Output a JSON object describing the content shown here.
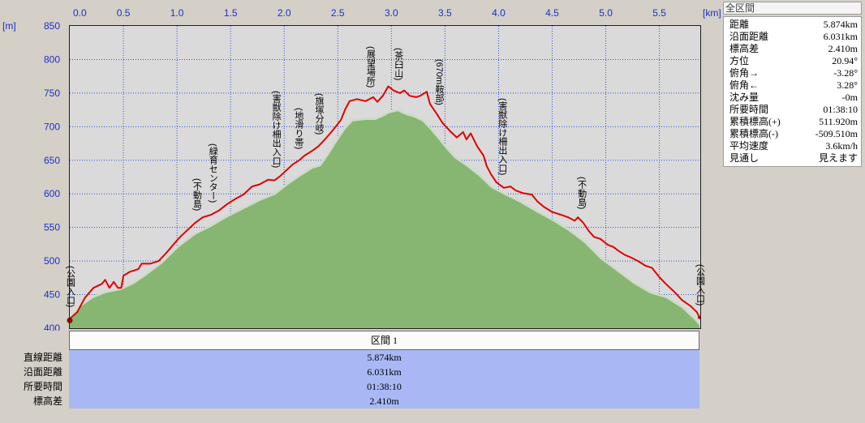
{
  "chart_data": {
    "type": "line",
    "xlabel": "[km]",
    "ylabel": "[m]",
    "xlim": [
      0,
      5.874
    ],
    "ylim": [
      400,
      850
    ],
    "grid": true,
    "x_ticks": [
      "0.0",
      "0.5",
      "1.0",
      "1.5",
      "2.0",
      "2.5",
      "3.0",
      "3.5",
      "4.0",
      "4.5",
      "5.0",
      "5.5"
    ],
    "y_ticks": [
      "850",
      "800",
      "750",
      "700",
      "650",
      "600",
      "550",
      "500",
      "450",
      "400"
    ],
    "series": [
      {
        "style": "area",
        "color": "#86b672",
        "edge_color": "#cddbc6",
        "points": [
          [
            0,
            410
          ],
          [
            0.11,
            433
          ],
          [
            0.22,
            445
          ],
          [
            0.33,
            452
          ],
          [
            0.48,
            457
          ],
          [
            0.6,
            466
          ],
          [
            0.71,
            478
          ],
          [
            0.86,
            496
          ],
          [
            1.02,
            521
          ],
          [
            1.17,
            539
          ],
          [
            1.32,
            551
          ],
          [
            1.47,
            565
          ],
          [
            1.62,
            577
          ],
          [
            1.77,
            589
          ],
          [
            1.92,
            599
          ],
          [
            2.04,
            614
          ],
          [
            2.15,
            626
          ],
          [
            2.27,
            638
          ],
          [
            2.34,
            641
          ],
          [
            2.42,
            659
          ],
          [
            2.49,
            677
          ],
          [
            2.57,
            696
          ],
          [
            2.64,
            708
          ],
          [
            2.76,
            710
          ],
          [
            2.85,
            710
          ],
          [
            2.91,
            714
          ],
          [
            2.98,
            720
          ],
          [
            3.06,
            723
          ],
          [
            3.14,
            717
          ],
          [
            3.21,
            714
          ],
          [
            3.29,
            708
          ],
          [
            3.36,
            696
          ],
          [
            3.44,
            681
          ],
          [
            3.52,
            665
          ],
          [
            3.59,
            653
          ],
          [
            3.7,
            641
          ],
          [
            3.82,
            626
          ],
          [
            3.93,
            609
          ],
          [
            4.05,
            599
          ],
          [
            4.2,
            587
          ],
          [
            4.35,
            573
          ],
          [
            4.5,
            560
          ],
          [
            4.65,
            545
          ],
          [
            4.8,
            527
          ],
          [
            4.95,
            503
          ],
          [
            5.11,
            484
          ],
          [
            5.26,
            466
          ],
          [
            5.41,
            452
          ],
          [
            5.56,
            445
          ],
          [
            5.71,
            430
          ],
          [
            5.83,
            412
          ],
          [
            5.874,
            404
          ]
        ]
      },
      {
        "style": "line",
        "color": "#e00000",
        "points": [
          [
            0,
            414
          ],
          [
            0.07,
            424
          ],
          [
            0.14,
            445
          ],
          [
            0.22,
            460
          ],
          [
            0.3,
            466
          ],
          [
            0.33,
            472
          ],
          [
            0.37,
            460
          ],
          [
            0.41,
            469
          ],
          [
            0.45,
            460
          ],
          [
            0.48,
            460
          ],
          [
            0.5,
            478
          ],
          [
            0.56,
            484
          ],
          [
            0.64,
            488
          ],
          [
            0.67,
            496
          ],
          [
            0.75,
            496
          ],
          [
            0.83,
            500
          ],
          [
            0.9,
            512
          ],
          [
            0.98,
            527
          ],
          [
            1.03,
            536
          ],
          [
            1.09,
            545
          ],
          [
            1.17,
            557
          ],
          [
            1.24,
            565
          ],
          [
            1.32,
            569
          ],
          [
            1.39,
            575
          ],
          [
            1.47,
            585
          ],
          [
            1.55,
            593
          ],
          [
            1.62,
            599
          ],
          [
            1.7,
            611
          ],
          [
            1.77,
            614
          ],
          [
            1.85,
            621
          ],
          [
            1.91,
            620
          ],
          [
            1.96,
            626
          ],
          [
            2.02,
            635
          ],
          [
            2.08,
            644
          ],
          [
            2.14,
            650
          ],
          [
            2.19,
            657
          ],
          [
            2.27,
            665
          ],
          [
            2.32,
            671
          ],
          [
            2.38,
            681
          ],
          [
            2.44,
            692
          ],
          [
            2.49,
            702
          ],
          [
            2.53,
            710
          ],
          [
            2.57,
            726
          ],
          [
            2.61,
            738
          ],
          [
            2.68,
            741
          ],
          [
            2.76,
            738
          ],
          [
            2.83,
            744
          ],
          [
            2.87,
            737
          ],
          [
            2.92,
            746
          ],
          [
            2.97,
            760
          ],
          [
            3.02,
            754
          ],
          [
            3.08,
            750
          ],
          [
            3.12,
            754
          ],
          [
            3.17,
            746
          ],
          [
            3.23,
            744
          ],
          [
            3.27,
            746
          ],
          [
            3.33,
            752
          ],
          [
            3.36,
            734
          ],
          [
            3.42,
            720
          ],
          [
            3.48,
            705
          ],
          [
            3.55,
            693
          ],
          [
            3.61,
            684
          ],
          [
            3.67,
            692
          ],
          [
            3.7,
            681
          ],
          [
            3.74,
            690
          ],
          [
            3.8,
            671
          ],
          [
            3.86,
            657
          ],
          [
            3.89,
            641
          ],
          [
            3.93,
            629
          ],
          [
            3.98,
            617
          ],
          [
            4.05,
            609
          ],
          [
            4.11,
            611
          ],
          [
            4.16,
            605
          ],
          [
            4.23,
            601
          ],
          [
            4.31,
            599
          ],
          [
            4.36,
            589
          ],
          [
            4.42,
            581
          ],
          [
            4.5,
            573
          ],
          [
            4.58,
            569
          ],
          [
            4.65,
            565
          ],
          [
            4.71,
            560
          ],
          [
            4.74,
            565
          ],
          [
            4.79,
            557
          ],
          [
            4.84,
            545
          ],
          [
            4.89,
            536
          ],
          [
            4.95,
            533
          ],
          [
            5.02,
            524
          ],
          [
            5.07,
            521
          ],
          [
            5.12,
            515
          ],
          [
            5.18,
            509
          ],
          [
            5.24,
            505
          ],
          [
            5.3,
            500
          ],
          [
            5.37,
            493
          ],
          [
            5.43,
            490
          ],
          [
            5.5,
            476
          ],
          [
            5.56,
            466
          ],
          [
            5.64,
            454
          ],
          [
            5.71,
            442
          ],
          [
            5.79,
            433
          ],
          [
            5.85,
            424
          ],
          [
            5.874,
            416
          ]
        ]
      }
    ],
    "annotations": [
      {
        "x": 0,
        "text": "(公園入口)"
      },
      {
        "x": 1.18,
        "text": "(不動島)"
      },
      {
        "x": 1.33,
        "text": "(緑育センター)"
      },
      {
        "x": 1.92,
        "text": "(害獣除け柵出入口)"
      },
      {
        "x": 2.13,
        "text": "(地滑り帯)"
      },
      {
        "x": 2.32,
        "text": "(旗塚分岐)"
      },
      {
        "x": 2.8,
        "text": "(展望場所)"
      },
      {
        "x": 3.06,
        "text": "(茶臼山)"
      },
      {
        "x": 3.44,
        "text": "(670m鞍部)"
      },
      {
        "x": 4.03,
        "text": "(害獣除け柵出入口)"
      },
      {
        "x": 4.77,
        "text": "(不動島)"
      },
      {
        "x": 5.874,
        "text": "(公園入口)"
      }
    ]
  },
  "segment_table": {
    "header": "区間 1",
    "rows": [
      {
        "label": "直線距離",
        "value": "5.874km"
      },
      {
        "label": "沿面距離",
        "value": "6.031km"
      },
      {
        "label": "所要時間",
        "value": "01:38:10"
      },
      {
        "label": "標高差",
        "value": "2.410m"
      }
    ]
  },
  "summary_panel": {
    "header": "全区間",
    "rows": [
      {
        "label": "距離",
        "value": "5.874km"
      },
      {
        "label": "沿面距離",
        "value": "6.031km"
      },
      {
        "label": "標高差",
        "value": "2.410m"
      },
      {
        "label": "方位",
        "value": "20.94°"
      },
      {
        "label": "俯角→",
        "value": "-3.28°"
      },
      {
        "label": "俯角←",
        "value": "3.28°"
      },
      {
        "label": "沈み量",
        "value": "-0m"
      },
      {
        "label": "所要時間",
        "value": "01:38:10"
      },
      {
        "label": "累積標高(+)",
        "value": "511.920m"
      },
      {
        "label": "累積標高(-)",
        "value": "-509.510m"
      },
      {
        "label": "平均速度",
        "value": "3.6km/h"
      },
      {
        "label": "見通し",
        "value": "見えます"
      }
    ]
  },
  "colors": {
    "background": "#d4d0c8",
    "plot_background": "#dadada",
    "grid": "#2f4fd8",
    "axis_text": "#1a2fc8",
    "segment_row": "#a9b8f5"
  }
}
